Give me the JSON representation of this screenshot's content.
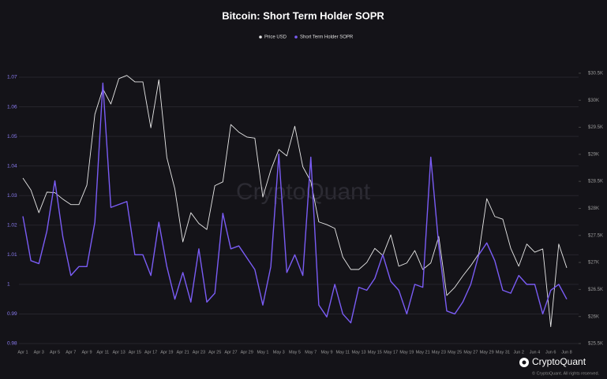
{
  "chart_data": {
    "type": "line",
    "title": "Bitcoin: Short Term Holder SOPR",
    "watermark": "CryptoQuant",
    "brand": "CryptoQuant",
    "copyright": "© CryptoQuant. All rights reserved.",
    "categories": [
      "Apr 1",
      null,
      "Apr 3",
      null,
      "Apr 5",
      null,
      "Apr 7",
      null,
      "Apr 9",
      null,
      "Apr 11",
      null,
      "Apr 13",
      null,
      "Apr 15",
      null,
      "Apr 17",
      null,
      "Apr 19",
      null,
      "Apr 21",
      null,
      "Apr 23",
      null,
      "Apr 25",
      null,
      "Apr 27",
      null,
      "Apr 29",
      null,
      "May 1",
      null,
      "May 3",
      null,
      "May 5",
      null,
      "May 7",
      null,
      "May 9",
      null,
      "May 11",
      null,
      "May 13",
      null,
      "May 15",
      null,
      "May 17",
      null,
      "May 19",
      null,
      "May 21",
      null,
      "May 23",
      null,
      "May 25",
      null,
      "May 27",
      null,
      "May 29",
      null,
      "May 31",
      null,
      "Jun 2",
      null,
      "Jun 4",
      null,
      "Jun 6",
      null,
      "Jun 8"
    ],
    "series": [
      {
        "name": "Price USD",
        "color": "#e8e8e8",
        "axis": "y2",
        "values": [
          28560,
          28340,
          27920,
          28300,
          28290,
          28170,
          28070,
          28070,
          28430,
          29740,
          30210,
          29930,
          30400,
          30460,
          30340,
          30340,
          29490,
          30380,
          28940,
          28360,
          27380,
          27920,
          27720,
          27610,
          28420,
          28490,
          29550,
          29410,
          29320,
          29300,
          28210,
          28710,
          29090,
          28970,
          29520,
          28770,
          28500,
          27750,
          27700,
          27630,
          27100,
          26870,
          26870,
          27000,
          27260,
          27130,
          27510,
          26930,
          26990,
          27220,
          26870,
          26990,
          27480,
          26390,
          26540,
          26750,
          26940,
          27160,
          28180,
          27850,
          27800,
          27260,
          26930,
          27340,
          27190,
          27250,
          25810,
          27340,
          26900
        ]
      },
      {
        "name": "Short Term Holder SOPR",
        "color": "#7a5cf5",
        "values": [
          1.023,
          1.008,
          1.007,
          1.018,
          1.035,
          1.016,
          1.003,
          1.006,
          1.006,
          1.021,
          1.068,
          1.026,
          1.027,
          1.028,
          1.01,
          1.01,
          1.003,
          1.021,
          1.006,
          0.995,
          1.004,
          0.994,
          1.012,
          0.994,
          0.997,
          1.024,
          1.012,
          1.013,
          1.009,
          1.005,
          0.993,
          1.006,
          1.044,
          1.004,
          1.01,
          1.003,
          1.043,
          0.993,
          0.989,
          1.0,
          0.99,
          0.987,
          0.999,
          0.998,
          1.002,
          1.01,
          1.001,
          0.998,
          0.99,
          1.0,
          0.999,
          1.043,
          1.013,
          0.991,
          0.99,
          0.994,
          1.0,
          1.01,
          1.014,
          1.008,
          0.998,
          0.997,
          1.003,
          1.0,
          1.0,
          0.99,
          0.998,
          1.0,
          0.995
        ]
      }
    ],
    "ylim": [
      0.98,
      1.075
    ],
    "yticks": [
      0.98,
      0.99,
      1,
      1.01,
      1.02,
      1.03,
      1.04,
      1.05,
      1.06,
      1.07
    ],
    "y2lim": [
      25500,
      30700
    ],
    "y2ticks": [
      {
        "value": 25500,
        "label": "$25.5K"
      },
      {
        "value": 26000,
        "label": "$26K"
      },
      {
        "value": 26500,
        "label": "$26.5K"
      },
      {
        "value": 27000,
        "label": "$27K"
      },
      {
        "value": 27500,
        "label": "$27.5K"
      },
      {
        "value": 28000,
        "label": "$28K"
      },
      {
        "value": 28500,
        "label": "$28.5K"
      },
      {
        "value": 29000,
        "label": "$29K"
      },
      {
        "value": 29500,
        "label": "$29.5K"
      },
      {
        "value": 30000,
        "label": "$30K"
      },
      {
        "value": 30500,
        "label": "$30.5K"
      }
    ],
    "grid": true,
    "legend": "top"
  }
}
